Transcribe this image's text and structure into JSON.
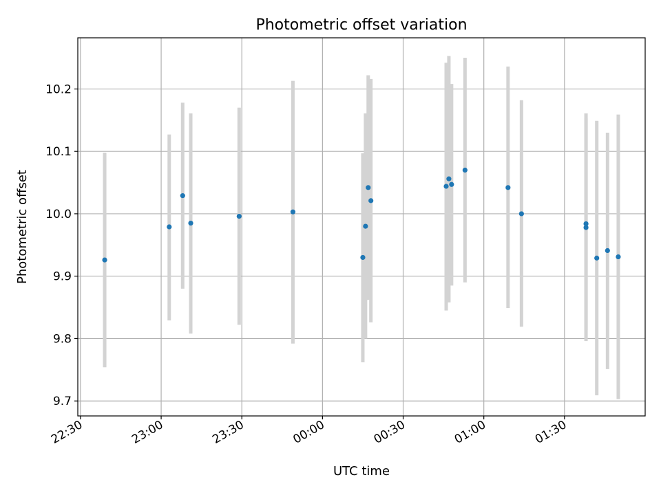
{
  "chart_data": {
    "type": "scatter",
    "title": "Photometric offset variation",
    "xlabel": "UTC time",
    "ylabel": "Photometric offset",
    "x_axis": {
      "kind": "time",
      "tick_labels": [
        "22:30",
        "23:00",
        "23:30",
        "00:00",
        "00:30",
        "01:00",
        "01:30"
      ],
      "tick_times": [
        "2000-01-01 22:30",
        "2000-01-01 23:00",
        "2000-01-01 23:30",
        "2000-01-02 00:00",
        "2000-01-02 00:30",
        "2000-01-02 01:00",
        "2000-01-02 01:30"
      ],
      "xlim": [
        "2000-01-01 22:29",
        "2000-01-02 02:00"
      ]
    },
    "y_axis": {
      "ylim": [
        9.676,
        10.282
      ],
      "ticks": [
        9.7,
        9.8,
        9.9,
        10.0,
        10.1,
        10.2
      ],
      "tick_labels": [
        "9.7",
        "9.8",
        "9.9",
        "10.0",
        "10.1",
        "10.2"
      ]
    },
    "grid": true,
    "colors": {
      "points": "#1f77b4",
      "errorbars": "#d3d3d3",
      "grid": "#b0b0b0"
    },
    "points": [
      {
        "x": "2000-01-01 22:39",
        "y": 9.926,
        "ylow": 9.754,
        "yhigh": 10.098
      },
      {
        "x": "2000-01-01 23:03",
        "y": 9.979,
        "ylow": 9.829,
        "yhigh": 10.127
      },
      {
        "x": "2000-01-01 23:08",
        "y": 10.029,
        "ylow": 9.88,
        "yhigh": 10.178
      },
      {
        "x": "2000-01-01 23:11",
        "y": 9.985,
        "ylow": 9.808,
        "yhigh": 10.161
      },
      {
        "x": "2000-01-01 23:29",
        "y": 9.996,
        "ylow": 9.822,
        "yhigh": 10.17
      },
      {
        "x": "2000-01-01 23:49",
        "y": 10.003,
        "ylow": 9.792,
        "yhigh": 10.213
      },
      {
        "x": "2000-01-02 00:15",
        "y": 9.93,
        "ylow": 9.762,
        "yhigh": 10.097
      },
      {
        "x": "2000-01-02 00:16",
        "y": 9.98,
        "ylow": 9.8,
        "yhigh": 10.161
      },
      {
        "x": "2000-01-02 00:17",
        "y": 10.042,
        "ylow": 9.862,
        "yhigh": 10.222
      },
      {
        "x": "2000-01-02 00:18",
        "y": 10.021,
        "ylow": 9.826,
        "yhigh": 10.216
      },
      {
        "x": "2000-01-02 00:46",
        "y": 10.044,
        "ylow": 9.845,
        "yhigh": 10.242
      },
      {
        "x": "2000-01-02 00:47",
        "y": 10.056,
        "ylow": 9.858,
        "yhigh": 10.253
      },
      {
        "x": "2000-01-02 00:48",
        "y": 10.047,
        "ylow": 9.885,
        "yhigh": 10.208
      },
      {
        "x": "2000-01-02 00:53",
        "y": 10.07,
        "ylow": 9.89,
        "yhigh": 10.25
      },
      {
        "x": "2000-01-02 01:09",
        "y": 10.042,
        "ylow": 9.849,
        "yhigh": 10.236
      },
      {
        "x": "2000-01-02 01:14",
        "y": 10.0,
        "ylow": 9.819,
        "yhigh": 10.182
      },
      {
        "x": "2000-01-02 01:38",
        "y": 9.984,
        "ylow": 9.813,
        "yhigh": 10.153
      },
      {
        "x": "2000-01-02 01:38",
        "y": 9.978,
        "ylow": 9.796,
        "yhigh": 10.161
      },
      {
        "x": "2000-01-02 01:42",
        "y": 9.929,
        "ylow": 9.709,
        "yhigh": 10.149
      },
      {
        "x": "2000-01-02 01:46",
        "y": 9.941,
        "ylow": 9.751,
        "yhigh": 10.13
      },
      {
        "x": "2000-01-02 01:50",
        "y": 9.931,
        "ylow": 9.703,
        "yhigh": 10.159
      }
    ]
  }
}
